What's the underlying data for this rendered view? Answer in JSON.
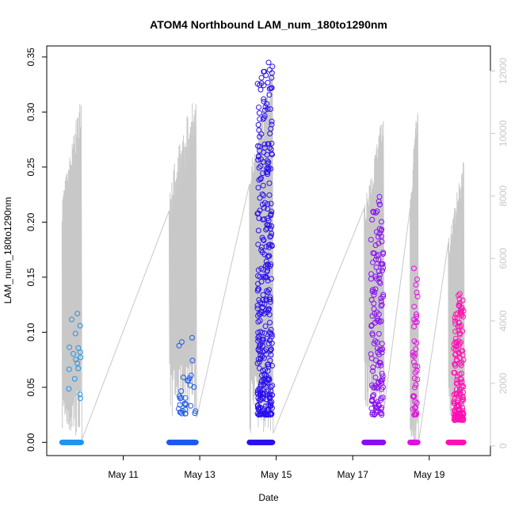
{
  "chart_data": {
    "type": "scatter",
    "title": "ATOM4 Northbound LAM_num_180to1290nm",
    "xlabel": "Date",
    "ylabel": "LAM_num_180to1290nm",
    "x_ticks": [
      "May 11",
      "May 13",
      "May 15",
      "May 17",
      "May 19"
    ],
    "x_tick_days": [
      11,
      13,
      15,
      17,
      19
    ],
    "xlim_days": [
      9.0,
      20.6
    ],
    "y_ticks": [
      "0.00",
      "0.05",
      "0.10",
      "0.15",
      "0.20",
      "0.25",
      "0.30",
      "0.35"
    ],
    "y_tick_values": [
      0,
      0.05,
      0.1,
      0.15,
      0.2,
      0.25,
      0.3,
      0.35
    ],
    "ylim": [
      -0.012,
      0.36
    ],
    "y2_ticks": [
      "0",
      "2000",
      "4000",
      "6000",
      "8000",
      "10000",
      "12000"
    ],
    "y2_tick_values": [
      0,
      2000,
      4000,
      6000,
      8000,
      10000,
      12000
    ],
    "y2lim": [
      -310,
      12800
    ],
    "line_color": "#c8c8c8",
    "grid": false,
    "series": [
      {
        "color": "#1e96f0",
        "day_range": [
          9.4,
          9.9
        ],
        "hi_min": 0.04,
        "hi_max": 0.117,
        "hi_count": 16,
        "line_max": 11300,
        "line_min": 200
      },
      {
        "color": "#1e5af0",
        "day_range": [
          12.2,
          12.9
        ],
        "hi_min": 0.026,
        "hi_max": 0.095,
        "hi_count": 30,
        "line_max": 11800,
        "line_min": 900
      },
      {
        "color": "#2a10f0",
        "day_range": [
          14.3,
          14.9
        ],
        "hi_min": 0.025,
        "hi_max": 0.345,
        "hi_count": 340,
        "line_max": 12400,
        "line_min": 400
      },
      {
        "color": "#8a10f0",
        "day_range": [
          17.3,
          17.8
        ],
        "hi_min": 0.025,
        "hi_max": 0.223,
        "hi_count": 140,
        "line_max": 10900,
        "line_min": 1200
      },
      {
        "color": "#e010e0",
        "day_range": [
          18.5,
          18.7
        ],
        "hi_min": 0.025,
        "hi_max": 0.158,
        "hi_count": 40,
        "line_max": 11300,
        "line_min": 100
      },
      {
        "color": "#ff10b4",
        "day_range": [
          19.5,
          19.9
        ],
        "hi_min": 0.02,
        "hi_max": 0.135,
        "hi_count": 160,
        "line_max": 9300,
        "line_min": 700
      }
    ]
  }
}
